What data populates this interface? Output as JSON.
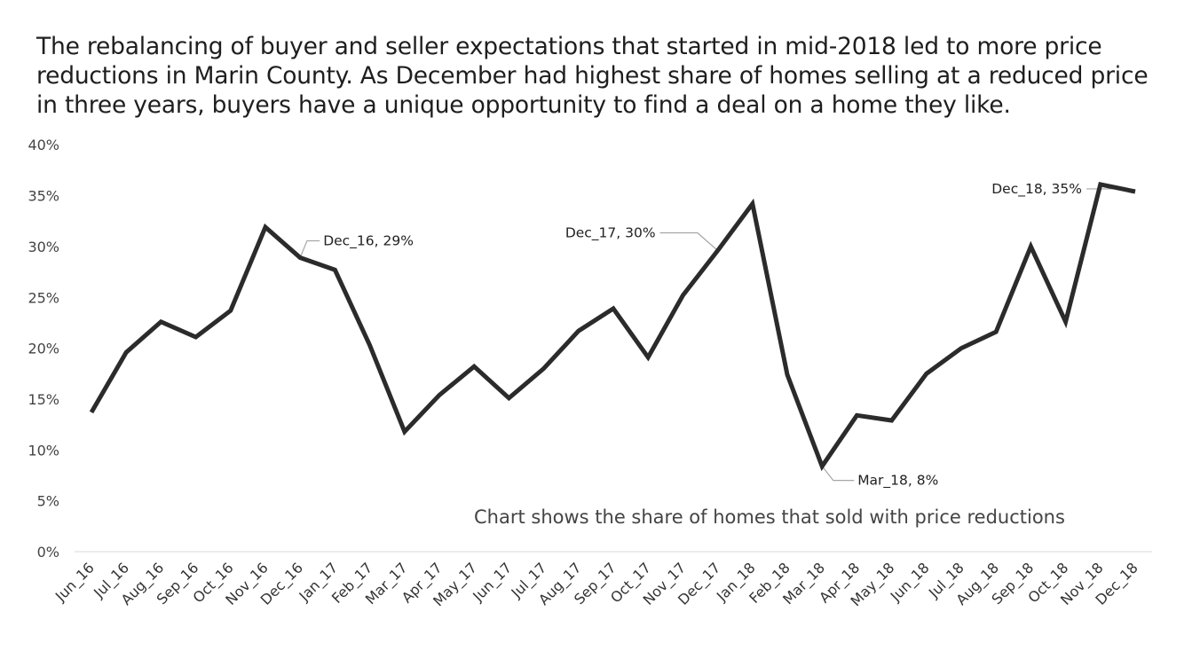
{
  "headline": "The rebalancing of buyer and seller expectations that started in mid-2018 led to more price reductions in Marin County. As December had highest share of homes selling at a reduced price in three years, buyers have a unique opportunity to find a deal on a home they like.",
  "chart_data": {
    "type": "line",
    "categories": [
      "Jun_16",
      "Jul_16",
      "Aug_16",
      "Sep_16",
      "Oct_16",
      "Nov_16",
      "Dec_16",
      "Jan_17",
      "Feb_17",
      "Mar_17",
      "Apr_17",
      "May_17",
      "Jun_17",
      "Jul_17",
      "Aug_17",
      "Sep_17",
      "Oct_17",
      "Nov_17",
      "Dec_17",
      "Jan_18",
      "Feb_18",
      "Mar_18",
      "Apr_18",
      "May_18",
      "Jun_18",
      "Jul_18",
      "Aug_18",
      "Sep_18",
      "Oct_18",
      "Nov_18",
      "Dec_18"
    ],
    "values": [
      13.7,
      19.6,
      22.6,
      21.1,
      23.7,
      31.9,
      28.9,
      27.7,
      20.3,
      11.8,
      15.4,
      18.2,
      15.1,
      18.0,
      21.7,
      23.9,
      19.1,
      25.2,
      29.6,
      34.2,
      17.4,
      8.4,
      13.4,
      12.9,
      17.5,
      20.0,
      21.6,
      30.0,
      22.6,
      36.1,
      35.4
    ],
    "yticks": [
      "0%",
      "5%",
      "10%",
      "15%",
      "20%",
      "25%",
      "30%",
      "35%",
      "40%"
    ],
    "ylim": [
      0,
      40
    ],
    "line_color": "#2b2b2b",
    "annotations": [
      {
        "text": "Dec_16, 29%",
        "index": 6
      },
      {
        "text": "Dec_17, 30%",
        "index": 18
      },
      {
        "text": "Mar_18, 8%",
        "index": 21
      },
      {
        "text": "Dec_18, 35%",
        "index": 30
      }
    ],
    "note": "Chart shows the share of homes that sold with price reductions"
  }
}
